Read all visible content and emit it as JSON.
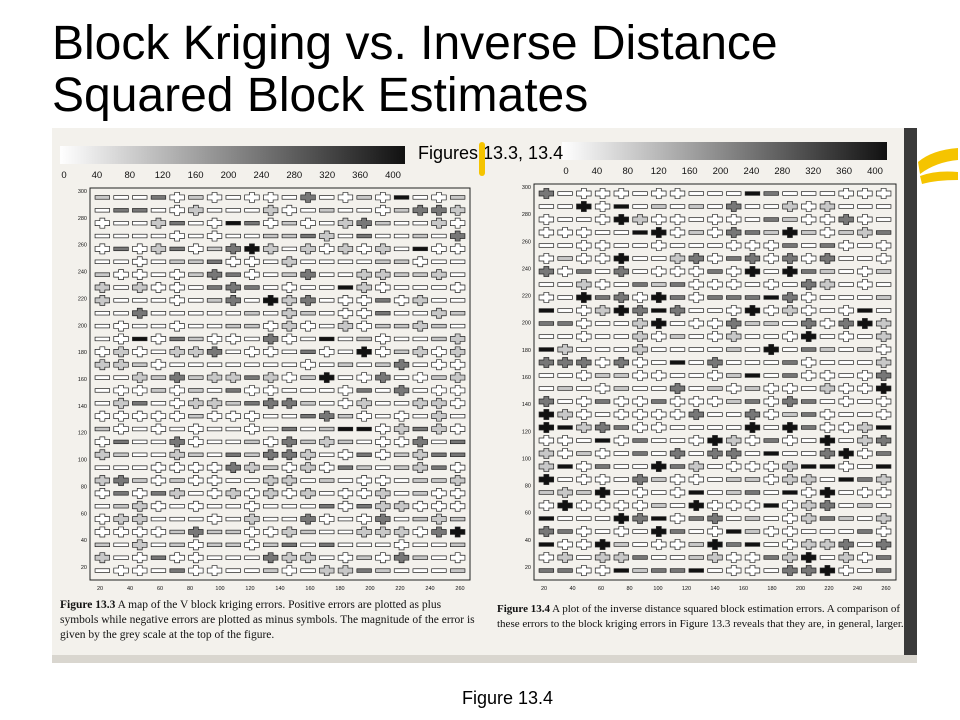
{
  "slide": {
    "title_line1": "Block Kriging vs. Inverse Distance",
    "title_line2": "Squared Block Estimates",
    "subtitle": "Figures 13.3, 13.4",
    "footer": "Figure 13.4"
  },
  "scan": {
    "left_figure": {
      "scale_ticks": [
        "0",
        "40",
        "80",
        "120",
        "160",
        "200",
        "240",
        "280",
        "320",
        "360",
        "400"
      ],
      "y_ticks": [
        "300",
        "280",
        "260",
        "240",
        "220",
        "200",
        "180",
        "160",
        "140",
        "120",
        "100",
        "80",
        "60",
        "40",
        "20"
      ],
      "x_ticks": [
        "20",
        "40",
        "60",
        "80",
        "100",
        "120",
        "140",
        "160",
        "180",
        "200",
        "220",
        "240",
        "260"
      ],
      "caption_label": "Figure 13.3",
      "caption_text": "A map of the V block kriging errors. Positive errors are plotted as plus symbols while negative errors are plotted as minus symbols. The magnitude of the error is given by the grey scale at the top of the figure."
    },
    "right_figure": {
      "scale_ticks": [
        "0",
        "40",
        "80",
        "120",
        "160",
        "200",
        "240",
        "280",
        "320",
        "360",
        "400"
      ],
      "y_ticks": [
        "300",
        "280",
        "260",
        "240",
        "220",
        "200",
        "180",
        "160",
        "140",
        "120",
        "100",
        "80",
        "60",
        "40",
        "20"
      ],
      "x_ticks": [
        "20",
        "40",
        "60",
        "80",
        "100",
        "120",
        "140",
        "160",
        "180",
        "200",
        "220",
        "240",
        "260"
      ],
      "caption_label": "Figure 13.4",
      "caption_text": "A plot of the inverse distance squared block estimation errors. A comparison of these errors to the block kriging errors in Figure 13.3 reveals that they are, in general, larger."
    }
  },
  "colors": {
    "highlighter": "#f5c400",
    "scan_bg": "#f3f1ec",
    "ink": "#111111"
  }
}
